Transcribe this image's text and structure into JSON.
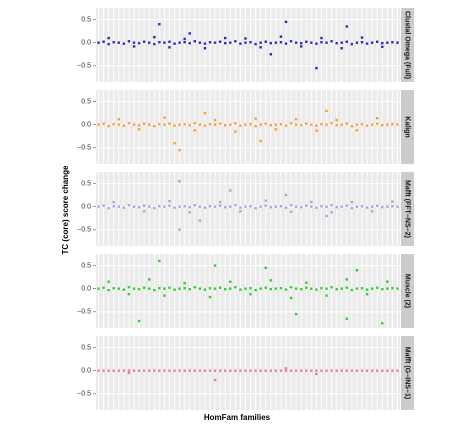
{
  "xlabel": "HomFam families",
  "ylabel": "TC (core) score change",
  "chart_data": [
    {
      "type": "scatter",
      "title": "Clustal Omega (Full)",
      "color": "#2b2bbf",
      "grid": true,
      "xlim": [
        0.5,
        60.5
      ],
      "xticks": [
        1,
        2,
        3,
        4,
        5,
        6,
        7,
        8,
        9,
        10,
        11,
        12,
        13,
        14,
        15,
        16,
        17,
        18,
        19,
        20,
        21,
        22,
        23,
        24,
        25,
        26,
        27,
        28,
        29,
        30,
        31,
        32,
        33,
        34,
        35,
        36,
        37,
        38,
        39,
        40,
        41,
        42,
        43,
        44,
        45,
        46,
        47,
        48,
        49,
        50,
        51,
        52,
        53,
        54,
        55,
        56,
        57,
        58,
        59,
        60
      ],
      "ylim": [
        -0.85,
        0.75
      ],
      "yticks": [
        {
          "value": -0.5,
          "label": "−0.5"
        },
        {
          "value": 0,
          "label": "0.0"
        },
        {
          "value": 0.5,
          "label": "0.5"
        }
      ],
      "x": [
        1,
        2,
        3,
        4,
        5,
        6,
        7,
        8,
        9,
        10,
        11,
        12,
        13,
        14,
        15,
        16,
        17,
        18,
        19,
        20,
        21,
        22,
        23,
        24,
        25,
        26,
        27,
        28,
        29,
        30,
        31,
        32,
        33,
        34,
        35,
        36,
        37,
        38,
        39,
        40,
        41,
        42,
        43,
        44,
        45,
        46,
        47,
        48,
        49,
        50,
        51,
        52,
        53,
        54,
        55,
        56,
        57,
        58,
        59,
        60,
        3,
        8,
        12,
        15,
        18,
        22,
        26,
        30,
        33,
        37,
        41,
        45,
        49,
        53,
        57,
        13,
        19,
        35,
        38,
        44,
        50
      ],
      "y": [
        0,
        0.02,
        -0.03,
        0.01,
        0,
        -0.02,
        0.03,
        0,
        -0.01,
        0.02,
        0,
        -0.03,
        0.01,
        0,
        0.02,
        -0.02,
        0,
        0.01,
        -0.01,
        0.03,
        0,
        -0.02,
        0.01,
        0,
        0.02,
        -0.01,
        0,
        0.03,
        -0.02,
        0,
        0.01,
        -0.03,
        0,
        0.02,
        -0.01,
        0,
        0.01,
        -0.02,
        0.03,
        0,
        -0.01,
        0.02,
        0,
        -0.02,
        0.01,
        0,
        0.03,
        -0.01,
        0,
        0.02,
        -0.03,
        0,
        0.01,
        -0.02,
        0,
        0.02,
        -0.01,
        0,
        0.01,
        0,
        0.1,
        -0.08,
        0.12,
        -0.1,
        0.08,
        -0.12,
        0.1,
        0.09,
        -0.1,
        0.13,
        -0.08,
        0.1,
        -0.12,
        0.11,
        -0.09,
        0.4,
        0.2,
        -0.25,
        0.45,
        -0.55,
        0.35
      ]
    },
    {
      "type": "scatter",
      "title": "Kalign",
      "color": "#f5a040",
      "grid": true,
      "xlim": [
        0.5,
        60.5
      ],
      "xticks": [
        1,
        2,
        3,
        4,
        5,
        6,
        7,
        8,
        9,
        10,
        11,
        12,
        13,
        14,
        15,
        16,
        17,
        18,
        19,
        20,
        21,
        22,
        23,
        24,
        25,
        26,
        27,
        28,
        29,
        30,
        31,
        32,
        33,
        34,
        35,
        36,
        37,
        38,
        39,
        40,
        41,
        42,
        43,
        44,
        45,
        46,
        47,
        48,
        49,
        50,
        51,
        52,
        53,
        54,
        55,
        56,
        57,
        58,
        59,
        60
      ],
      "ylim": [
        -0.85,
        0.75
      ],
      "yticks": [
        {
          "value": -0.5,
          "label": "−0.5"
        },
        {
          "value": 0,
          "label": "0.0"
        },
        {
          "value": 0.5,
          "label": "0.5"
        }
      ],
      "x": [
        1,
        2,
        3,
        4,
        5,
        6,
        7,
        8,
        9,
        10,
        11,
        12,
        13,
        14,
        15,
        16,
        17,
        18,
        19,
        20,
        21,
        22,
        23,
        24,
        25,
        26,
        27,
        28,
        29,
        30,
        31,
        32,
        33,
        34,
        35,
        36,
        37,
        38,
        39,
        40,
        41,
        42,
        43,
        44,
        45,
        46,
        47,
        48,
        49,
        50,
        51,
        52,
        53,
        54,
        55,
        56,
        57,
        58,
        59,
        60,
        5,
        9,
        14,
        20,
        24,
        28,
        32,
        36,
        40,
        44,
        48,
        52,
        56,
        16,
        17,
        22,
        33,
        46
      ],
      "y": [
        0,
        0.02,
        -0.03,
        0.01,
        0,
        -0.02,
        0.03,
        0,
        -0.01,
        0.02,
        0,
        -0.03,
        0.01,
        0,
        0.02,
        -0.02,
        0,
        0.01,
        -0.01,
        0.03,
        0,
        -0.02,
        0.01,
        0,
        0.02,
        -0.01,
        0,
        0.03,
        -0.02,
        0,
        0.01,
        -0.03,
        0,
        0.02,
        -0.01,
        0,
        0.01,
        -0.02,
        0.03,
        0,
        -0.01,
        0.02,
        0,
        -0.02,
        0.01,
        0,
        0.03,
        -0.01,
        0,
        0.02,
        -0.03,
        0,
        0.01,
        -0.02,
        0,
        0.02,
        -0.01,
        0,
        0.01,
        0,
        0.12,
        -0.1,
        0.15,
        -0.12,
        0.1,
        -0.15,
        0.13,
        -0.1,
        0.12,
        -0.13,
        0.1,
        -0.12,
        0.14,
        -0.4,
        -0.55,
        0.25,
        -0.35,
        0.3
      ]
    },
    {
      "type": "scatter",
      "title": "Mafft (FFT−NS−2)",
      "color": "#a9a3e6",
      "grid": true,
      "xlim": [
        0.5,
        60.5
      ],
      "xticks": [
        1,
        2,
        3,
        4,
        5,
        6,
        7,
        8,
        9,
        10,
        11,
        12,
        13,
        14,
        15,
        16,
        17,
        18,
        19,
        20,
        21,
        22,
        23,
        24,
        25,
        26,
        27,
        28,
        29,
        30,
        31,
        32,
        33,
        34,
        35,
        36,
        37,
        38,
        39,
        40,
        41,
        42,
        43,
        44,
        45,
        46,
        47,
        48,
        49,
        50,
        51,
        52,
        53,
        54,
        55,
        56,
        57,
        58,
        59,
        60
      ],
      "ylim": [
        -0.85,
        0.75
      ],
      "yticks": [
        {
          "value": -0.5,
          "label": "−0.5"
        },
        {
          "value": 0,
          "label": "0.0"
        },
        {
          "value": 0.5,
          "label": "0.5"
        }
      ],
      "x": [
        1,
        2,
        3,
        4,
        5,
        6,
        7,
        8,
        9,
        10,
        11,
        12,
        13,
        14,
        15,
        16,
        17,
        18,
        19,
        20,
        21,
        22,
        23,
        24,
        25,
        26,
        27,
        28,
        29,
        30,
        31,
        32,
        33,
        34,
        35,
        36,
        37,
        38,
        39,
        40,
        41,
        42,
        43,
        44,
        45,
        46,
        47,
        48,
        49,
        50,
        51,
        52,
        53,
        54,
        55,
        56,
        57,
        58,
        59,
        60,
        4,
        10,
        15,
        19,
        25,
        29,
        34,
        39,
        43,
        47,
        51,
        55,
        59,
        17,
        17,
        21,
        27,
        38,
        46
      ],
      "y": [
        0,
        0.02,
        -0.03,
        0.01,
        0,
        -0.02,
        0.03,
        0,
        -0.01,
        0.02,
        0,
        -0.03,
        0.01,
        0,
        0.02,
        -0.02,
        0,
        0.01,
        -0.01,
        0.03,
        0,
        -0.02,
        0.01,
        0,
        0.02,
        -0.01,
        0,
        0.03,
        -0.02,
        0,
        0.01,
        -0.03,
        0,
        0.02,
        -0.01,
        0,
        0.01,
        -0.02,
        0.03,
        0,
        -0.01,
        0.02,
        0,
        -0.02,
        0.01,
        0,
        0.03,
        -0.01,
        0,
        0.02,
        -0.03,
        0,
        0.01,
        -0.02,
        0,
        0.02,
        -0.01,
        0,
        0.01,
        0,
        0.1,
        -0.1,
        0.12,
        -0.12,
        0.1,
        -0.1,
        0.13,
        -0.11,
        0.1,
        -0.12,
        0.1,
        -0.1,
        0.11,
        0.55,
        -0.5,
        -0.3,
        0.35,
        0.25,
        -0.2
      ]
    },
    {
      "type": "scatter",
      "title": "Muscle (2)",
      "color": "#33cc33",
      "grid": true,
      "xlim": [
        0.5,
        60.5
      ],
      "xticks": [
        1,
        2,
        3,
        4,
        5,
        6,
        7,
        8,
        9,
        10,
        11,
        12,
        13,
        14,
        15,
        16,
        17,
        18,
        19,
        20,
        21,
        22,
        23,
        24,
        25,
        26,
        27,
        28,
        29,
        30,
        31,
        32,
        33,
        34,
        35,
        36,
        37,
        38,
        39,
        40,
        41,
        42,
        43,
        44,
        45,
        46,
        47,
        48,
        49,
        50,
        51,
        52,
        53,
        54,
        55,
        56,
        57,
        58,
        59,
        60
      ],
      "ylim": [
        -0.85,
        0.75
      ],
      "yticks": [
        {
          "value": -0.5,
          "label": "−0.5"
        },
        {
          "value": 0,
          "label": "0.0"
        },
        {
          "value": 0.5,
          "label": "0.5"
        }
      ],
      "x": [
        1,
        2,
        3,
        4,
        5,
        6,
        7,
        8,
        9,
        10,
        11,
        12,
        13,
        14,
        15,
        16,
        17,
        18,
        19,
        20,
        21,
        22,
        23,
        24,
        25,
        26,
        27,
        28,
        29,
        30,
        31,
        32,
        33,
        34,
        35,
        36,
        37,
        38,
        39,
        40,
        41,
        42,
        43,
        44,
        45,
        46,
        47,
        48,
        49,
        50,
        51,
        52,
        53,
        54,
        55,
        56,
        57,
        58,
        59,
        60,
        3,
        7,
        11,
        14,
        18,
        23,
        27,
        31,
        35,
        39,
        42,
        46,
        50,
        54,
        58,
        9,
        13,
        24,
        34,
        40,
        50,
        52,
        57
      ],
      "y": [
        0,
        0.02,
        -0.03,
        0.01,
        0,
        -0.02,
        0.03,
        0,
        -0.01,
        0.02,
        0,
        -0.03,
        0.01,
        0,
        0.02,
        -0.02,
        0,
        0.01,
        -0.01,
        0.03,
        0,
        -0.02,
        0.01,
        0,
        0.02,
        -0.01,
        0,
        0.03,
        -0.02,
        0,
        0.01,
        -0.03,
        0,
        0.02,
        -0.01,
        0,
        0.01,
        -0.02,
        0.03,
        0,
        -0.01,
        0.02,
        0,
        -0.02,
        0.01,
        0,
        0.03,
        -0.01,
        0,
        0.02,
        -0.03,
        0,
        0.01,
        -0.02,
        0,
        0.02,
        -0.01,
        0,
        0.01,
        0,
        0.15,
        -0.12,
        0.2,
        -0.15,
        0.12,
        -0.18,
        0.15,
        -0.12,
        0.18,
        -0.2,
        0.13,
        -0.15,
        0.2,
        -0.12,
        0.15,
        -0.7,
        0.6,
        0.5,
        0.45,
        -0.55,
        -0.65,
        0.4,
        -0.75
      ]
    },
    {
      "type": "scatter",
      "title": "Mafft (G−INS−1)",
      "color": "#e879a8",
      "grid": true,
      "xlim": [
        0.5,
        60.5
      ],
      "xticks": [
        1,
        2,
        3,
        4,
        5,
        6,
        7,
        8,
        9,
        10,
        11,
        12,
        13,
        14,
        15,
        16,
        17,
        18,
        19,
        20,
        21,
        22,
        23,
        24,
        25,
        26,
        27,
        28,
        29,
        30,
        31,
        32,
        33,
        34,
        35,
        36,
        37,
        38,
        39,
        40,
        41,
        42,
        43,
        44,
        45,
        46,
        47,
        48,
        49,
        50,
        51,
        52,
        53,
        54,
        55,
        56,
        57,
        58,
        59,
        60
      ],
      "ylim": [
        -0.85,
        0.75
      ],
      "yticks": [
        {
          "value": -0.5,
          "label": "−0.5"
        },
        {
          "value": 0,
          "label": "0.0"
        },
        {
          "value": 0.5,
          "label": "0.5"
        }
      ],
      "x": [
        1,
        2,
        3,
        4,
        5,
        6,
        7,
        8,
        9,
        10,
        11,
        12,
        13,
        14,
        15,
        16,
        17,
        18,
        19,
        20,
        21,
        22,
        23,
        24,
        25,
        26,
        27,
        28,
        29,
        30,
        31,
        32,
        33,
        34,
        35,
        36,
        37,
        38,
        39,
        40,
        41,
        42,
        43,
        44,
        45,
        46,
        47,
        48,
        49,
        50,
        51,
        52,
        53,
        54,
        55,
        56,
        57,
        58,
        59,
        60,
        7,
        24,
        38,
        44
      ],
      "y": [
        0,
        0,
        0,
        0,
        0,
        0,
        0,
        0,
        0,
        0,
        0,
        0,
        0,
        0,
        0,
        0,
        0,
        0,
        0,
        0,
        0,
        0,
        0,
        0,
        0,
        0,
        0,
        0,
        0,
        0,
        0,
        0,
        0,
        0,
        0,
        0,
        0,
        0,
        0,
        0,
        0,
        0,
        0,
        0,
        0,
        0,
        0,
        0,
        0,
        0,
        0,
        0,
        0,
        0,
        0,
        0,
        0,
        0,
        0,
        0,
        -0.05,
        -0.2,
        0.05,
        -0.07
      ]
    }
  ]
}
